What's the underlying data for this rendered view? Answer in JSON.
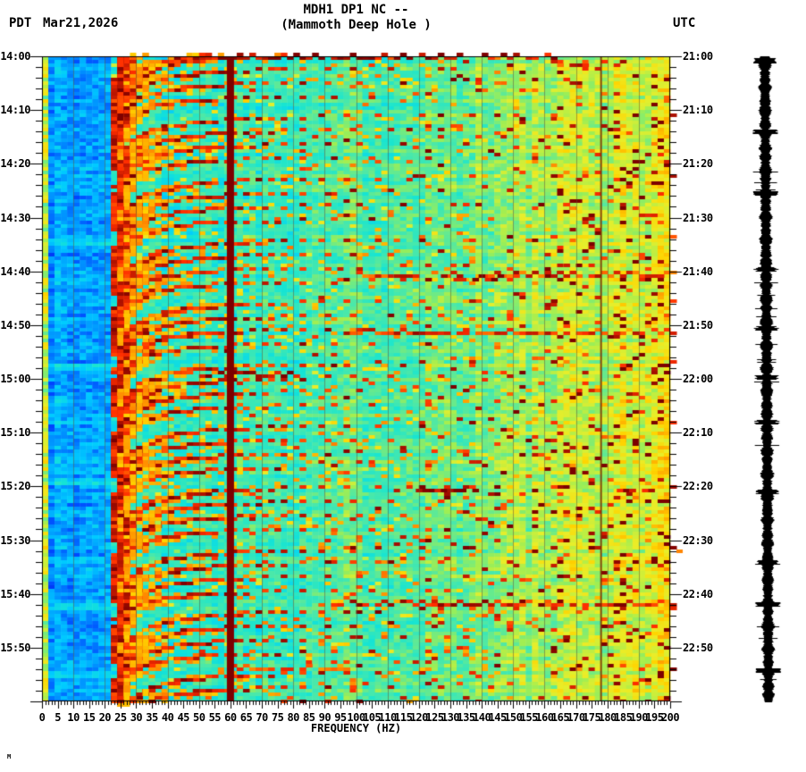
{
  "header": {
    "tz_left": "PDT",
    "date": "Mar21,2026",
    "title_line1": "MDH1 DP1 NC --",
    "title_line2": "(Mammoth Deep Hole )",
    "tz_right": "UTC"
  },
  "footer_mark": "M",
  "chart_data": {
    "type": "heatmap",
    "subtype": "seismic-spectrogram",
    "title": "MDH1 DP1 NC --",
    "subtitle": "(Mammoth Deep Hole )",
    "station": "MDH1 DP1 NC",
    "site_name": "Mammoth Deep Hole",
    "date_local": "Mar21,2026",
    "xlabel": "FREQUENCY (HZ)",
    "x_range_hz": [
      0,
      200
    ],
    "x_tick_step_hz": 5,
    "x_minor_tick_hz": 1,
    "x_tick_labels": [
      "0",
      "5",
      "10",
      "15",
      "20",
      "25",
      "30",
      "35",
      "40",
      "45",
      "50",
      "55",
      "60",
      "65",
      "70",
      "75",
      "80",
      "85",
      "90",
      "95",
      "100",
      "105",
      "110",
      "115",
      "120",
      "125",
      "130",
      "135",
      "140",
      "145",
      "150",
      "155",
      "160",
      "165",
      "170",
      "175",
      "180",
      "185",
      "190",
      "195",
      "200"
    ],
    "y_left_axis": {
      "timezone": "PDT",
      "range": [
        "14:00",
        "16:00"
      ],
      "major_tick_minutes": 10,
      "minor_tick_minutes": 2,
      "tick_labels": [
        "14:00",
        "14:10",
        "14:20",
        "14:30",
        "14:40",
        "14:50",
        "15:00",
        "15:10",
        "15:20",
        "15:30",
        "15:40",
        "15:50"
      ]
    },
    "y_right_axis": {
      "timezone": "UTC",
      "range": [
        "21:00",
        "23:00"
      ],
      "major_tick_minutes": 10,
      "minor_tick_minutes": 2,
      "tick_labels": [
        "21:00",
        "21:10",
        "21:20",
        "21:30",
        "21:40",
        "21:50",
        "22:00",
        "22:10",
        "22:20",
        "22:30",
        "22:40",
        "22:50"
      ]
    },
    "legend_position": "none",
    "grid": "vertical lines every 10 Hz",
    "features": [
      "solid dark-red vertical interference line at 60 Hz",
      "thin dark vertical line near 178 Hz",
      "repeating gliding harmonic chirp arcs (steep near 22-25 Hz, flattening toward 200 Hz), period ~11.5 min",
      "blue low-amplitude band 0-22 Hz",
      "narrow green/yellow stripe at 0-2 Hz",
      "yellow high-energy band 130-200 Hz",
      "broadband red horizontal bursts at several times",
      "compressed black vertical seismogram trace at right margin"
    ],
    "colors": {
      "mains_line": "#7c0000",
      "narrow_line": "#7a2f00",
      "grid_line": "#575034",
      "trace": "#000000",
      "text": "#000000",
      "background": "#ffffff"
    },
    "palette_stops": [
      [
        0.0,
        "#0000b0"
      ],
      [
        0.12,
        "#0040ff"
      ],
      [
        0.22,
        "#0090ff"
      ],
      [
        0.32,
        "#00ccff"
      ],
      [
        0.42,
        "#17e5d2"
      ],
      [
        0.52,
        "#4ce8a8"
      ],
      [
        0.62,
        "#9dee55"
      ],
      [
        0.7,
        "#e8ee2a"
      ],
      [
        0.78,
        "#ffd400"
      ],
      [
        0.86,
        "#ff8c00"
      ],
      [
        0.93,
        "#ff2e00"
      ],
      [
        1.0,
        "#7c0000"
      ]
    ],
    "render": {
      "seed": 1337,
      "duration_minutes": 120,
      "mains_hz": 60,
      "narrow_line_hz": 178,
      "blue_band_max_hz": 22,
      "yellow_band_min_hz": 130,
      "chirp_events_t0_minutes": [
        -9,
        -1,
        10.5,
        22,
        33.5,
        45,
        56.5,
        68,
        79.5,
        91,
        102.5,
        114
      ],
      "chirp_suboffsets_minutes": [
        0,
        2.6,
        5.2,
        7.9
      ],
      "chirp_K_values": [
        54,
        49,
        44,
        39
      ],
      "chirp_fmax_hz": [
        200,
        200,
        170,
        130
      ],
      "chirp_fbase_hz": 20,
      "chirp_tail_minutes": 14,
      "burst_streaks": [
        {
          "t": 0.4,
          "f1": 46,
          "f2": 132,
          "v": 0.99
        },
        {
          "t": 0.4,
          "f1": 140,
          "f2": 162,
          "v": 0.95
        },
        {
          "t": 1.4,
          "f1": 162,
          "f2": 186,
          "v": 0.93
        },
        {
          "t": 41.2,
          "f1": 100,
          "f2": 200,
          "v": 0.92
        },
        {
          "t": 41.8,
          "f1": 127,
          "f2": 146,
          "v": 0.99
        },
        {
          "t": 51.2,
          "f1": 96,
          "f2": 200,
          "v": 0.93
        },
        {
          "t": 59.6,
          "f1": 48,
          "f2": 80,
          "v": 0.99
        },
        {
          "t": 80.9,
          "f1": 119,
          "f2": 137,
          "v": 0.99
        },
        {
          "t": 80.9,
          "f1": 181,
          "f2": 196,
          "v": 0.97
        },
        {
          "t": 101.9,
          "f1": 88,
          "f2": 200,
          "v": 0.95
        },
        {
          "t": 114.2,
          "f1": 60,
          "f2": 96,
          "v": 0.9
        }
      ],
      "pale_rows_minutes": [
        33.8,
        57.3,
        78.7,
        101.9,
        114.5
      ],
      "trace_spike_minutes": [
        0.8,
        14,
        25.5,
        39.5,
        50.5,
        59.6,
        68,
        80.9,
        94,
        101.9,
        114.2
      ]
    }
  }
}
